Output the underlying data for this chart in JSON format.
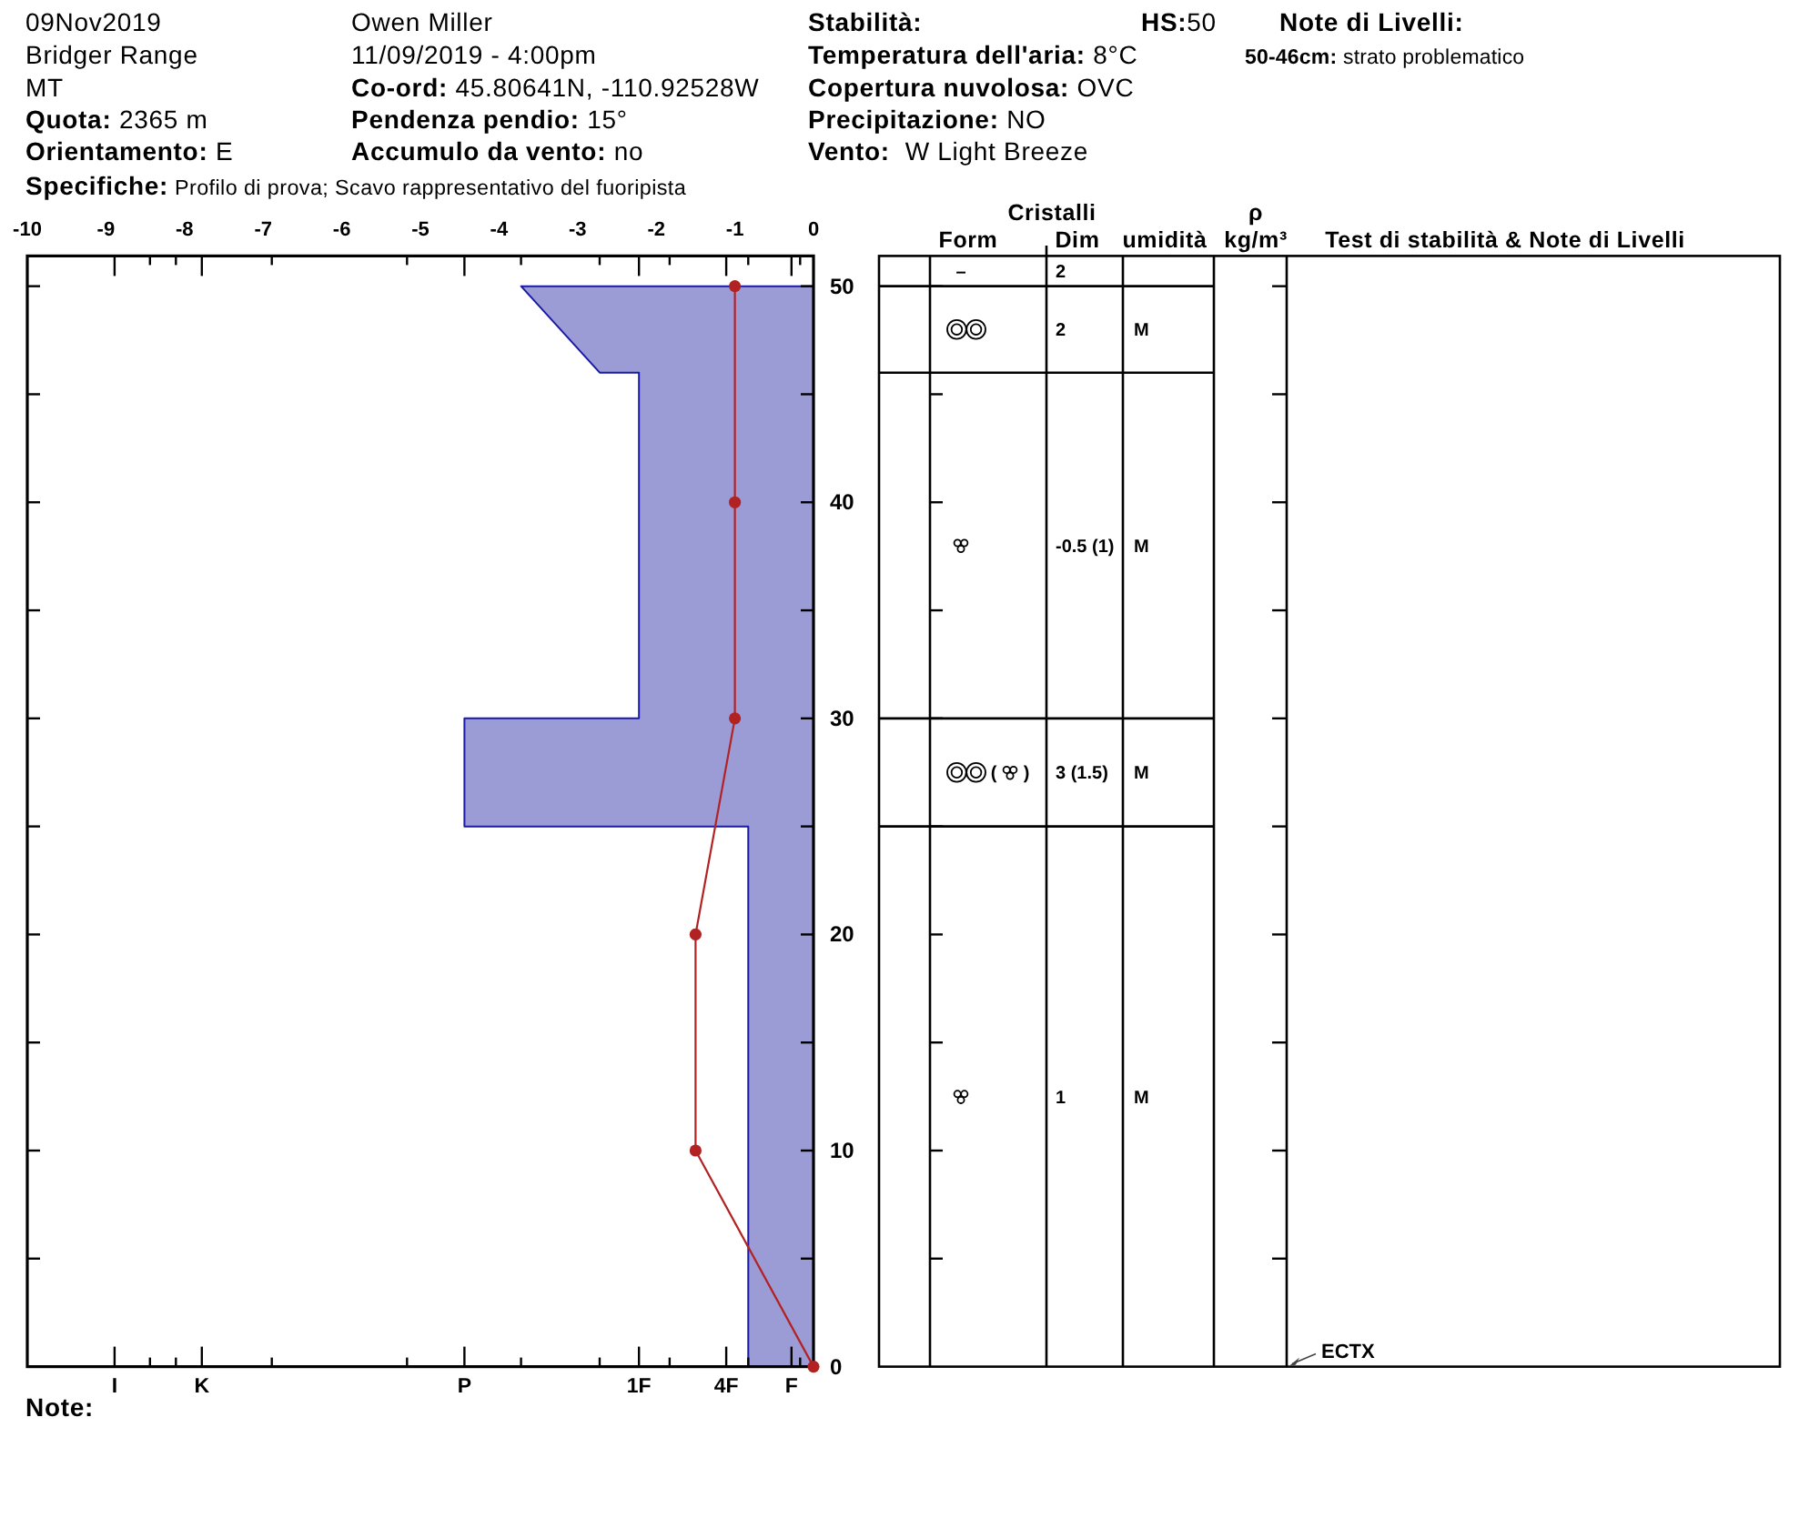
{
  "chart_data": [
    {
      "type": "area",
      "orientation": "horizontal",
      "xlim": [
        -10,
        0
      ],
      "xticks": [
        -10,
        -9,
        -8,
        -7,
        -6,
        -5,
        -4,
        -3,
        -2,
        -1,
        0,
        {
          "value": -8.89,
          "label": null
        },
        {
          "value": -8.44,
          "label": null
        },
        {
          "value": -8.11,
          "label": null
        },
        {
          "value": -7.78,
          "label": null
        },
        {
          "value": -6.89,
          "label": null
        },
        {
          "value": -5.17,
          "label": null
        },
        {
          "value": -4.44,
          "label": null
        },
        {
          "value": -3.72,
          "label": null
        },
        {
          "value": -2.72,
          "label": null
        },
        {
          "value": -2.22,
          "label": null
        },
        {
          "value": -1.83,
          "label": null
        },
        {
          "value": -1.11,
          "label": null
        },
        {
          "value": -0.83,
          "label": null
        },
        {
          "value": -0.28,
          "label": null
        },
        {
          "value": -0.17,
          "label": null
        }
      ],
      "ylim": [
        0,
        51.4
      ],
      "yticks": [
        0,
        {
          "value": 5,
          "label": null
        },
        10,
        {
          "value": 15,
          "label": null
        },
        20,
        {
          "value": 25,
          "label": null
        },
        30,
        {
          "value": 35,
          "label": null
        },
        40,
        {
          "value": 45,
          "label": null
        },
        50
      ],
      "series": [
        {
          "type": "area",
          "color": "#9b9bd6",
          "x": [
            50,
            46,
            46,
            30,
            30,
            25,
            25,
            0
          ],
          "values": [
            -3.72,
            -2.72,
            -2.22,
            -2.22,
            -4.44,
            -4.44,
            -0.83,
            -0.83
          ]
        },
        {
          "type": "line",
          "color": "#b22222",
          "marker": "circle",
          "x": [
            50,
            40,
            30,
            20,
            10,
            0
          ],
          "values": [
            -1,
            -1,
            -1,
            -1.5,
            -1.5,
            0
          ]
        }
      ],
      "annotations": [
        "09Nov2019",
        "Bridger Range",
        "MT",
        "Quota: 2365 m",
        "Orientamento: E",
        "Specifiche: Profilo di prova; Scavo rappresentativo del fuoripista",
        "Owen Miller",
        "11/09/2019 - 4:00pm",
        "Co-ord: 45.80641N, -110.92528W",
        "Pendenza pendio: 15°",
        "Accumulo da vento: no",
        "Stabilità:",
        "HS:50",
        "Temperatura dell'aria: 8°C",
        "Copertura nuvolosa: OVC",
        "Precipitazione: NO",
        "Vento:  W Light Breeze",
        "Note di Livelli:",
        "50-46cm: strato problematico",
        "Note:",
        "I",
        "K",
        "P",
        "1F",
        "4F",
        "F"
      ]
    },
    {
      "type": "other",
      "categories": [
        null,
        "Form",
        "Dim",
        "umidità",
        "ρ\nkg/m³",
        "Test di stabilità & Note di Livelli"
      ],
      "annotations": [
        "Cristalli",
        "–",
        "2",
        "2",
        "M",
        "-0.5 (1)",
        "M",
        "(",
        ")",
        "3 (1.5)",
        "M",
        "1",
        "M",
        "ECTX"
      ]
    }
  ]
}
